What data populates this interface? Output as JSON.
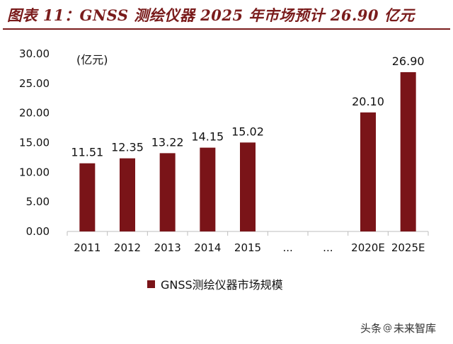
{
  "header": {
    "title": "图表 11：GNSS 测绘仪器 2025 年市场预计 26.90 亿元"
  },
  "chart_data": {
    "type": "bar",
    "unit_label": "(亿元)",
    "categories": [
      "2011",
      "2012",
      "2013",
      "2014",
      "2015",
      "...",
      "...",
      "2020E",
      "2025E"
    ],
    "series": [
      {
        "name": "GNSS测绘仪器市场规模",
        "values": [
          11.51,
          12.35,
          13.22,
          14.15,
          15.02,
          null,
          null,
          20.1,
          26.9
        ],
        "labels": [
          "11.51",
          "12.35",
          "13.22",
          "14.15",
          "15.02",
          "",
          "",
          "20.10",
          "26.90"
        ]
      }
    ],
    "y_ticks": [
      "0.00",
      "5.00",
      "10.00",
      "15.00",
      "20.00",
      "25.00",
      "30.00"
    ],
    "ylim": [
      0,
      30
    ],
    "grid": false,
    "legend_position": "bottom",
    "bar_color": "#7a1418"
  },
  "legend": {
    "label": "GNSS测绘仪器市场规模"
  },
  "watermark": {
    "left": "头条",
    "icon": "@",
    "right": "未来智库"
  },
  "colors": {
    "title": "#7a1c1c",
    "bar": "#7a1418"
  }
}
